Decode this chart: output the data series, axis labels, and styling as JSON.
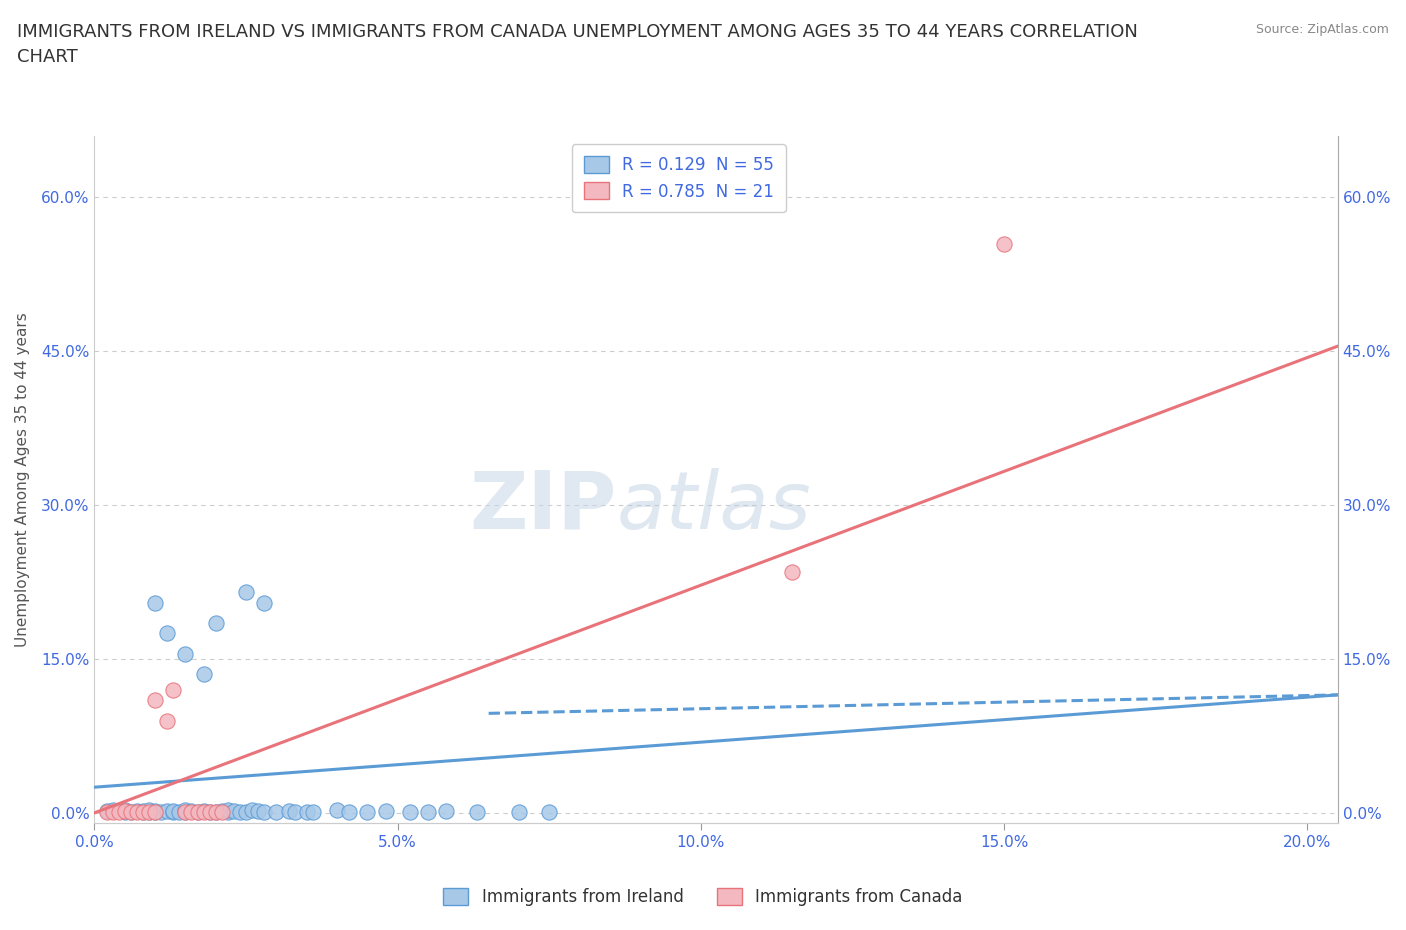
{
  "title": "IMMIGRANTS FROM IRELAND VS IMMIGRANTS FROM CANADA UNEMPLOYMENT AMONG AGES 35 TO 44 YEARS CORRELATION\nCHART",
  "source": "Source: ZipAtlas.com",
  "ylabel": "Unemployment Among Ages 35 to 44 years",
  "xlim": [
    0.0,
    0.205
  ],
  "ylim": [
    -0.01,
    0.66
  ],
  "yticks": [
    0.0,
    0.15,
    0.3,
    0.45,
    0.6
  ],
  "ytick_labels": [
    "0.0%",
    "15.0%",
    "30.0%",
    "45.0%",
    "60.0%"
  ],
  "xticks": [
    0.0,
    0.05,
    0.1,
    0.15,
    0.2
  ],
  "xtick_labels": [
    "0.0%",
    "5.0%",
    "10.0%",
    "15.0%",
    "20.0%"
  ],
  "ireland_R": 0.129,
  "ireland_N": 55,
  "canada_R": 0.785,
  "canada_N": 21,
  "ireland_color": "#a8c8e8",
  "canada_color": "#f4b8c0",
  "ireland_edge_color": "#5b9bd5",
  "canada_edge_color": "#e8737a",
  "ireland_scatter": [
    [
      0.002,
      0.002
    ],
    [
      0.003,
      0.003
    ],
    [
      0.005,
      0.001
    ],
    [
      0.005,
      0.003
    ],
    [
      0.006,
      0.001
    ],
    [
      0.007,
      0.002
    ],
    [
      0.008,
      0.001
    ],
    [
      0.008,
      0.002
    ],
    [
      0.009,
      0.001
    ],
    [
      0.009,
      0.003
    ],
    [
      0.01,
      0.001
    ],
    [
      0.01,
      0.002
    ],
    [
      0.011,
      0.001
    ],
    [
      0.012,
      0.002
    ],
    [
      0.013,
      0.001
    ],
    [
      0.013,
      0.002
    ],
    [
      0.014,
      0.001
    ],
    [
      0.015,
      0.001
    ],
    [
      0.015,
      0.003
    ],
    [
      0.016,
      0.002
    ],
    [
      0.017,
      0.001
    ],
    [
      0.018,
      0.002
    ],
    [
      0.019,
      0.001
    ],
    [
      0.02,
      0.001
    ],
    [
      0.021,
      0.002
    ],
    [
      0.022,
      0.001
    ],
    [
      0.022,
      0.003
    ],
    [
      0.023,
      0.002
    ],
    [
      0.024,
      0.001
    ],
    [
      0.025,
      0.001
    ],
    [
      0.026,
      0.003
    ],
    [
      0.027,
      0.002
    ],
    [
      0.028,
      0.001
    ],
    [
      0.03,
      0.001
    ],
    [
      0.032,
      0.002
    ],
    [
      0.033,
      0.001
    ],
    [
      0.035,
      0.001
    ],
    [
      0.036,
      0.001
    ],
    [
      0.04,
      0.003
    ],
    [
      0.042,
      0.001
    ],
    [
      0.045,
      0.001
    ],
    [
      0.048,
      0.002
    ],
    [
      0.052,
      0.001
    ],
    [
      0.055,
      0.001
    ],
    [
      0.058,
      0.002
    ],
    [
      0.063,
      0.001
    ],
    [
      0.07,
      0.001
    ],
    [
      0.075,
      0.001
    ],
    [
      0.01,
      0.205
    ],
    [
      0.012,
      0.175
    ],
    [
      0.015,
      0.155
    ],
    [
      0.018,
      0.135
    ],
    [
      0.02,
      0.185
    ],
    [
      0.025,
      0.215
    ],
    [
      0.028,
      0.205
    ]
  ],
  "canada_scatter": [
    [
      0.002,
      0.001
    ],
    [
      0.003,
      0.001
    ],
    [
      0.004,
      0.001
    ],
    [
      0.005,
      0.002
    ],
    [
      0.006,
      0.001
    ],
    [
      0.007,
      0.001
    ],
    [
      0.008,
      0.001
    ],
    [
      0.009,
      0.001
    ],
    [
      0.01,
      0.001
    ],
    [
      0.01,
      0.11
    ],
    [
      0.012,
      0.09
    ],
    [
      0.013,
      0.12
    ],
    [
      0.015,
      0.001
    ],
    [
      0.016,
      0.001
    ],
    [
      0.017,
      0.001
    ],
    [
      0.018,
      0.001
    ],
    [
      0.019,
      0.001
    ],
    [
      0.02,
      0.001
    ],
    [
      0.021,
      0.001
    ],
    [
      0.115,
      0.235
    ],
    [
      0.15,
      0.555
    ]
  ],
  "ireland_trendline_x": [
    0.0,
    0.205
  ],
  "ireland_trendline_y": [
    0.025,
    0.115
  ],
  "canada_trendline_x": [
    0.0,
    0.205
  ],
  "canada_trendline_y": [
    0.0,
    0.455
  ],
  "watermark_zip": "ZIP",
  "watermark_atlas": "atlas",
  "background_color": "#ffffff",
  "grid_color": "#cccccc",
  "tick_color": "#4169e1",
  "title_color": "#333333",
  "title_fontsize": 13,
  "axis_label_fontsize": 11,
  "tick_fontsize": 11,
  "legend_fontsize": 12
}
